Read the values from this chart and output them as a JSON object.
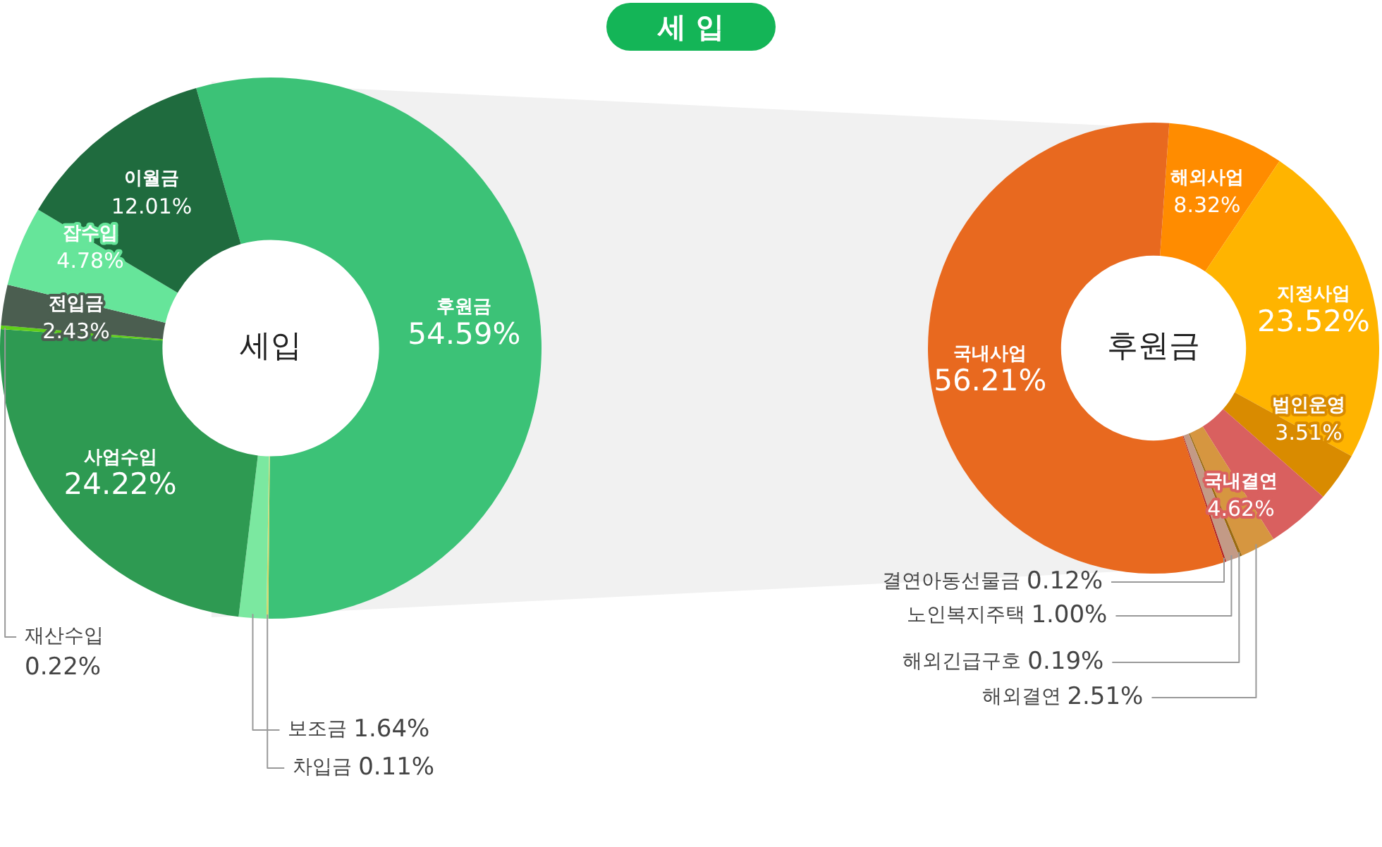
{
  "chart_data": [
    {
      "type": "donut",
      "title": "세 입",
      "annotations": [
        "세입"
      ],
      "categories": [
        "후원금",
        "차입금",
        "보조금",
        "사업수입",
        "재산수입",
        "전입금",
        "잡수입",
        "이월금"
      ],
      "values": [
        54.59,
        0.11,
        1.64,
        24.22,
        0.22,
        2.43,
        4.78,
        12.01
      ],
      "colors": [
        "#3cc277",
        "#d6d86a",
        "#7be8a0",
        "#2e9a52",
        "#5fcf1a",
        "#4b5e50",
        "#66e59a",
        "#1f6b3e"
      ],
      "value_labels": [
        "54.59%",
        "0.11%",
        "1.64%",
        "24.22%",
        "0.22%",
        "2.43%",
        "4.78%",
        "12.01%"
      ]
    },
    {
      "type": "donut",
      "annotations": [
        "후원금"
      ],
      "categories": [
        "해외사업",
        "지정사업",
        "법인운영",
        "국내결연",
        "해외결연",
        "해외긴급구호",
        "노인복지주택",
        "결연아동선물금",
        "국내사업"
      ],
      "values": [
        8.32,
        23.52,
        3.51,
        4.62,
        2.51,
        0.19,
        1.0,
        0.12,
        56.21
      ],
      "colors": [
        "#ff8c00",
        "#ffb400",
        "#d98b00",
        "#d9605f",
        "#d69640",
        "#9a6a10",
        "#c39a86",
        "#b01e1e",
        "#e8691f"
      ],
      "value_labels": [
        "8.32%",
        "23.52%",
        "3.51%",
        "4.62%",
        "2.51%",
        "0.19%",
        "1.00%",
        "0.12%",
        "56.21%"
      ]
    }
  ]
}
